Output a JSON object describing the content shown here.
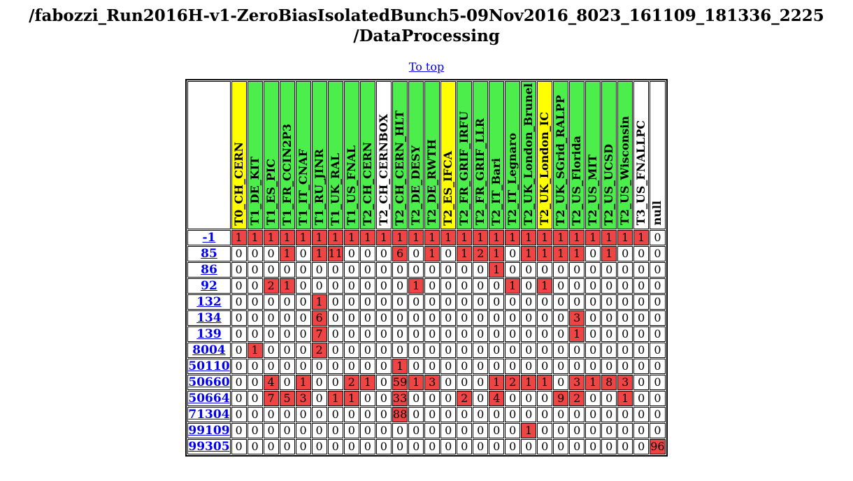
{
  "header": {
    "title_line1": "/fabozzi_Run2016H-v1-ZeroBiasIsolatedBunch5-09Nov2016_8023_161109_181336_2225",
    "title_line2": "/DataProcessing",
    "to_top": "To top"
  },
  "colors": {
    "yellow": "#ffff00",
    "green": "#4cee4c",
    "white": "#ffffff",
    "red_cell": "#ee4444"
  },
  "table": {
    "sites": [
      {
        "name": "T0_CH_CERN",
        "color": "yellow"
      },
      {
        "name": "T1_DE_KIT",
        "color": "green"
      },
      {
        "name": "T1_ES_PIC",
        "color": "green"
      },
      {
        "name": "T1_FR_CCIN2P3",
        "color": "green"
      },
      {
        "name": "T1_IT_CNAF",
        "color": "green"
      },
      {
        "name": "T1_RU_JINR",
        "color": "green"
      },
      {
        "name": "T1_UK_RAL",
        "color": "green"
      },
      {
        "name": "T1_US_FNAL",
        "color": "green"
      },
      {
        "name": "T2_CH_CERN",
        "color": "green"
      },
      {
        "name": "T2_CH_CERNBOX",
        "color": "white"
      },
      {
        "name": "T2_CH_CERN_HLT",
        "color": "green"
      },
      {
        "name": "T2_DE_DESY",
        "color": "green"
      },
      {
        "name": "T2_DE_RWTH",
        "color": "green"
      },
      {
        "name": "T2_ES_IFCA",
        "color": "yellow"
      },
      {
        "name": "T2_FR_GRIF_IRFU",
        "color": "green"
      },
      {
        "name": "T2_FR_GRIF_LLR",
        "color": "green"
      },
      {
        "name": "T2_IT_Bari",
        "color": "green"
      },
      {
        "name": "T2_IT_Legnaro",
        "color": "green"
      },
      {
        "name": "T2_UK_London_Brunel",
        "color": "green"
      },
      {
        "name": "T2_UK_London_IC",
        "color": "yellow"
      },
      {
        "name": "T2_UK_SGrid_RALPP",
        "color": "green"
      },
      {
        "name": "T2_US_Florida",
        "color": "green"
      },
      {
        "name": "T2_US_MIT",
        "color": "green"
      },
      {
        "name": "T2_US_UCSD",
        "color": "green"
      },
      {
        "name": "T2_US_Wisconsin",
        "color": "green"
      },
      {
        "name": "T3_US_FNALLPC",
        "color": "white"
      },
      {
        "name": "null",
        "color": "white"
      }
    ],
    "rows": [
      {
        "code": "-1",
        "values": [
          1,
          1,
          1,
          1,
          1,
          1,
          1,
          1,
          1,
          1,
          1,
          1,
          1,
          1,
          1,
          1,
          1,
          1,
          1,
          1,
          1,
          1,
          1,
          1,
          1,
          1,
          0
        ]
      },
      {
        "code": "85",
        "values": [
          0,
          0,
          0,
          1,
          0,
          1,
          11,
          0,
          0,
          0,
          6,
          0,
          1,
          0,
          1,
          2,
          1,
          0,
          1,
          1,
          1,
          1,
          0,
          1,
          0,
          0,
          0
        ]
      },
      {
        "code": "86",
        "values": [
          0,
          0,
          0,
          0,
          0,
          0,
          0,
          0,
          0,
          0,
          0,
          0,
          0,
          0,
          0,
          0,
          1,
          0,
          0,
          0,
          0,
          0,
          0,
          0,
          0,
          0,
          0
        ]
      },
      {
        "code": "92",
        "values": [
          0,
          0,
          2,
          1,
          0,
          0,
          0,
          0,
          0,
          0,
          0,
          1,
          0,
          0,
          0,
          0,
          0,
          1,
          0,
          1,
          0,
          0,
          0,
          0,
          0,
          0,
          0
        ]
      },
      {
        "code": "132",
        "values": [
          0,
          0,
          0,
          0,
          0,
          1,
          0,
          0,
          0,
          0,
          0,
          0,
          0,
          0,
          0,
          0,
          0,
          0,
          0,
          0,
          0,
          0,
          0,
          0,
          0,
          0,
          0
        ]
      },
      {
        "code": "134",
        "values": [
          0,
          0,
          0,
          0,
          0,
          6,
          0,
          0,
          0,
          0,
          0,
          0,
          0,
          0,
          0,
          0,
          0,
          0,
          0,
          0,
          0,
          3,
          0,
          0,
          0,
          0,
          0
        ]
      },
      {
        "code": "139",
        "values": [
          0,
          0,
          0,
          0,
          0,
          7,
          0,
          0,
          0,
          0,
          0,
          0,
          0,
          0,
          0,
          0,
          0,
          0,
          0,
          0,
          0,
          1,
          0,
          0,
          0,
          0,
          0
        ]
      },
      {
        "code": "8004",
        "values": [
          0,
          1,
          0,
          0,
          0,
          2,
          0,
          0,
          0,
          0,
          0,
          0,
          0,
          0,
          0,
          0,
          0,
          0,
          0,
          0,
          0,
          0,
          0,
          0,
          0,
          0,
          0
        ]
      },
      {
        "code": "50110",
        "values": [
          0,
          0,
          0,
          0,
          0,
          0,
          0,
          0,
          0,
          0,
          1,
          0,
          0,
          0,
          0,
          0,
          0,
          0,
          0,
          0,
          0,
          0,
          0,
          0,
          0,
          0,
          0
        ]
      },
      {
        "code": "50660",
        "values": [
          0,
          0,
          4,
          0,
          1,
          0,
          0,
          2,
          1,
          0,
          59,
          1,
          3,
          0,
          0,
          0,
          1,
          2,
          1,
          1,
          0,
          3,
          1,
          8,
          3,
          0,
          0
        ]
      },
      {
        "code": "50664",
        "values": [
          0,
          0,
          7,
          5,
          3,
          0,
          1,
          1,
          0,
          0,
          33,
          0,
          0,
          0,
          2,
          0,
          4,
          0,
          0,
          0,
          9,
          2,
          0,
          0,
          1,
          0,
          0
        ]
      },
      {
        "code": "71304",
        "values": [
          0,
          0,
          0,
          0,
          0,
          0,
          0,
          0,
          0,
          0,
          88,
          0,
          0,
          0,
          0,
          0,
          0,
          0,
          0,
          0,
          0,
          0,
          0,
          0,
          0,
          0,
          0
        ]
      },
      {
        "code": "99109",
        "values": [
          0,
          0,
          0,
          0,
          0,
          0,
          0,
          0,
          0,
          0,
          0,
          0,
          0,
          0,
          0,
          0,
          0,
          0,
          1,
          0,
          0,
          0,
          0,
          0,
          0,
          0,
          0
        ]
      },
      {
        "code": "99305",
        "values": [
          0,
          0,
          0,
          0,
          0,
          0,
          0,
          0,
          0,
          0,
          0,
          0,
          0,
          0,
          0,
          0,
          0,
          0,
          0,
          0,
          0,
          0,
          0,
          0,
          0,
          0,
          96
        ]
      }
    ]
  }
}
